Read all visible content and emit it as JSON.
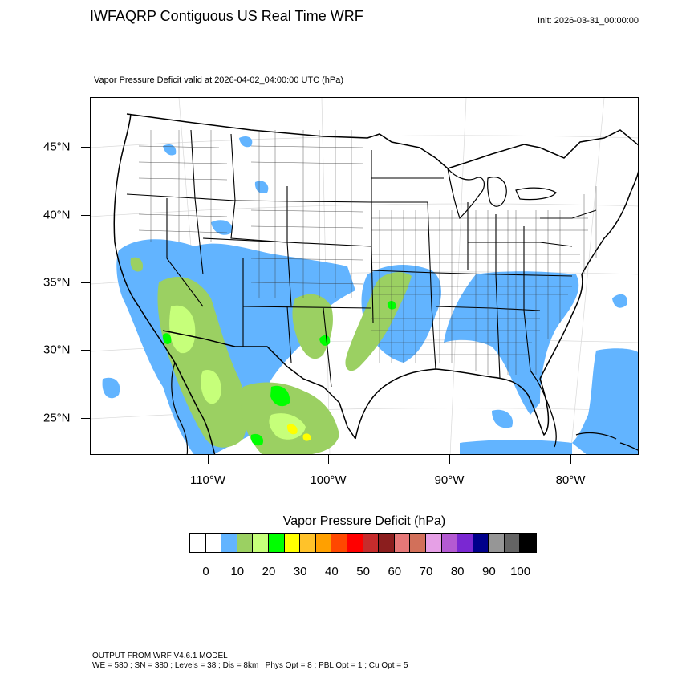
{
  "header": {
    "title": "IWFAQRP Contiguous US Real Time WRF",
    "init": "Init: 2026-03-31_00:00:00",
    "panel_title": "Vapor Pressure Deficit valid at 2026-04-02_04:00:00 UTC   (hPa)"
  },
  "map": {
    "lat_labels": [
      "45°N",
      "40°N",
      "35°N",
      "30°N",
      "25°N"
    ],
    "lon_labels": [
      "110°W",
      "100°W",
      "90°W",
      "80°W"
    ],
    "region": "Contiguous United States"
  },
  "colorbar": {
    "title": "Vapor Pressure Deficit  (hPa)",
    "colors": [
      "#ffffff",
      "#ffffff",
      "#62b4ff",
      "#9bd062",
      "#c6ff7a",
      "#00ff00",
      "#ffff00",
      "#ffc22a",
      "#ffa000",
      "#ff4800",
      "#ff0000",
      "#c62c2c",
      "#8b1e1e",
      "#e67878",
      "#d2705a",
      "#e6a0e6",
      "#b45ad2",
      "#7a28d2",
      "#00008b",
      "#969696",
      "#646464",
      "#000000"
    ],
    "labels": [
      "0",
      "10",
      "20",
      "30",
      "40",
      "50",
      "60",
      "70",
      "80",
      "90",
      "100"
    ]
  },
  "footer": {
    "line1": "OUTPUT FROM WRF V4.6.1 MODEL",
    "line2": "WE = 580 ; SN = 380 ; Levels = 38 ; Dis = 8km ; Phys Opt = 8 ; PBL Opt = 1 ; Cu Opt = 5"
  }
}
